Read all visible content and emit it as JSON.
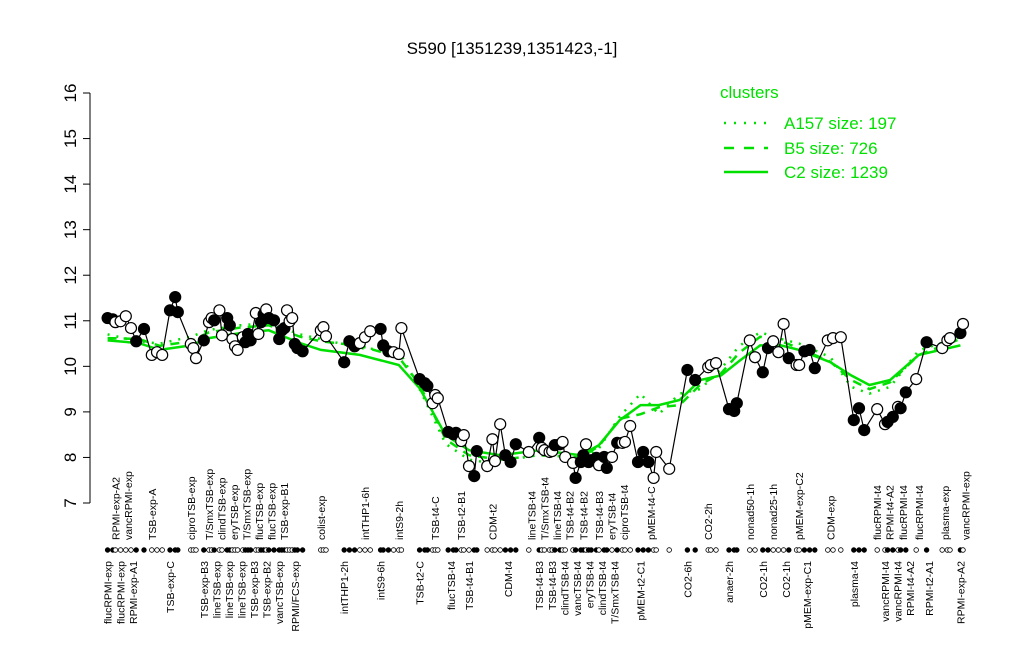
{
  "chart_data": {
    "type": "line",
    "title": "S590 [1351239,1351423,-1]",
    "xlabel": "",
    "ylabel": "",
    "ylim": [
      7,
      16
    ],
    "yticks": [
      7,
      8,
      9,
      10,
      11,
      12,
      13,
      14,
      15,
      16
    ],
    "xlim": [
      0,
      332
    ],
    "grid": false,
    "legend": {
      "title": "clusters",
      "placement": "top-right",
      "color": "#00e000",
      "entries": [
        {
          "label": "A157 size: 197",
          "style": "dotted"
        },
        {
          "label": "B5 size: 726",
          "style": "dashed"
        },
        {
          "label": "C2 size: 1239",
          "style": "solid"
        }
      ]
    },
    "points": [
      [
        1,
        11.06,
        1
      ],
      [
        3,
        11.03,
        1
      ],
      [
        4,
        10.97,
        0
      ],
      [
        6,
        10.99,
        0
      ],
      [
        8,
        11.1,
        0
      ],
      [
        10,
        10.84,
        0
      ],
      [
        12,
        10.55,
        1
      ],
      [
        15,
        10.82,
        1
      ],
      [
        18,
        10.25,
        0
      ],
      [
        20,
        10.31,
        0
      ],
      [
        22,
        10.25,
        0
      ],
      [
        25,
        11.23,
        1
      ],
      [
        27,
        11.52,
        1
      ],
      [
        28,
        11.19,
        1
      ],
      [
        33,
        10.49,
        0
      ],
      [
        34,
        10.4,
        0
      ],
      [
        35,
        10.18,
        0
      ],
      [
        38,
        10.57,
        1
      ],
      [
        40,
        10.97,
        0
      ],
      [
        41,
        11.06,
        0
      ],
      [
        42,
        11.01,
        1
      ],
      [
        44,
        11.23,
        0
      ],
      [
        45,
        10.68,
        0
      ],
      [
        47,
        11.06,
        1
      ],
      [
        48,
        10.9,
        1
      ],
      [
        49,
        10.6,
        0
      ],
      [
        50,
        10.44,
        0
      ],
      [
        51,
        10.36,
        0
      ],
      [
        53,
        10.64,
        0
      ],
      [
        54,
        10.53,
        1
      ],
      [
        55,
        10.71,
        1
      ],
      [
        56,
        10.57,
        1
      ],
      [
        58,
        11.17,
        0
      ],
      [
        59,
        10.71,
        0
      ],
      [
        60,
        10.97,
        1
      ],
      [
        61,
        11.14,
        1
      ],
      [
        62,
        11.25,
        0
      ],
      [
        63,
        11.06,
        1
      ],
      [
        65,
        11.01,
        1
      ],
      [
        67,
        10.6,
        1
      ],
      [
        68,
        10.79,
        1
      ],
      [
        69,
        10.84,
        1
      ],
      [
        70,
        11.23,
        0
      ],
      [
        71,
        10.99,
        0
      ],
      [
        72,
        11.06,
        0
      ],
      [
        73,
        10.49,
        1
      ],
      [
        74,
        10.4,
        1
      ],
      [
        76,
        10.33,
        1
      ],
      [
        83,
        10.79,
        0
      ],
      [
        84,
        10.86,
        0
      ],
      [
        85,
        10.66,
        0
      ],
      [
        92,
        10.09,
        1
      ],
      [
        94,
        10.55,
        1
      ],
      [
        96,
        10.44,
        1
      ],
      [
        98,
        10.51,
        0
      ],
      [
        100,
        10.64,
        0
      ],
      [
        102,
        10.77,
        0
      ],
      [
        106,
        10.82,
        1
      ],
      [
        107,
        10.46,
        1
      ],
      [
        109,
        10.33,
        1
      ],
      [
        111,
        10.31,
        0
      ],
      [
        113,
        10.27,
        0
      ],
      [
        114,
        10.84,
        0
      ],
      [
        121,
        9.72,
        1
      ],
      [
        123,
        9.63,
        1
      ],
      [
        124,
        9.57,
        1
      ],
      [
        126,
        9.19,
        0
      ],
      [
        127,
        9.37,
        0
      ],
      [
        128,
        9.3,
        0
      ],
      [
        132,
        8.56,
        1
      ],
      [
        134,
        8.51,
        1
      ],
      [
        135,
        8.54,
        1
      ],
      [
        137,
        8.36,
        0
      ],
      [
        138,
        8.49,
        0
      ],
      [
        140,
        7.81,
        0
      ],
      [
        142,
        7.59,
        1
      ],
      [
        143,
        8.14,
        1
      ],
      [
        147,
        7.81,
        0
      ],
      [
        149,
        8.4,
        0
      ],
      [
        150,
        7.92,
        0
      ],
      [
        152,
        8.73,
        0
      ],
      [
        154,
        8.05,
        1
      ],
      [
        156,
        7.9,
        1
      ],
      [
        158,
        8.29,
        1
      ],
      [
        163,
        8.12,
        0
      ],
      [
        167,
        8.43,
        1
      ],
      [
        168,
        8.21,
        0
      ],
      [
        169,
        8.16,
        0
      ],
      [
        171,
        8.12,
        0
      ],
      [
        172,
        8.14,
        0
      ],
      [
        173,
        8.27,
        1
      ],
      [
        175,
        8.29,
        1
      ],
      [
        176,
        8.34,
        0
      ],
      [
        177,
        8.01,
        0
      ],
      [
        180,
        7.88,
        0
      ],
      [
        181,
        7.55,
        1
      ],
      [
        183,
        7.9,
        1
      ],
      [
        184,
        8.05,
        1
      ],
      [
        185,
        8.29,
        0
      ],
      [
        186,
        7.9,
        1
      ],
      [
        187,
        7.94,
        1
      ],
      [
        189,
        7.99,
        1
      ],
      [
        190,
        7.83,
        0
      ],
      [
        192,
        8.01,
        1
      ],
      [
        193,
        7.77,
        1
      ],
      [
        195,
        8.01,
        0
      ],
      [
        197,
        8.32,
        1
      ],
      [
        199,
        8.32,
        0
      ],
      [
        200,
        8.34,
        0
      ],
      [
        202,
        8.69,
        0
      ],
      [
        205,
        7.9,
        1
      ],
      [
        207,
        8.12,
        1
      ],
      [
        209,
        7.9,
        1
      ],
      [
        211,
        7.55,
        0
      ],
      [
        212,
        8.12,
        0
      ],
      [
        217,
        7.75,
        0
      ],
      [
        224,
        9.92,
        1
      ],
      [
        227,
        9.7,
        1
      ],
      [
        232,
        9.98,
        0
      ],
      [
        233,
        10.03,
        0
      ],
      [
        235,
        10.07,
        0
      ],
      [
        240,
        9.06,
        1
      ],
      [
        242,
        9.02,
        1
      ],
      [
        243,
        9.19,
        1
      ],
      [
        248,
        10.57,
        0
      ],
      [
        250,
        10.2,
        0
      ],
      [
        253,
        9.87,
        1
      ],
      [
        255,
        10.4,
        1
      ],
      [
        257,
        10.55,
        0
      ],
      [
        259,
        10.31,
        0
      ],
      [
        261,
        10.93,
        0
      ],
      [
        263,
        10.18,
        1
      ],
      [
        266,
        10.03,
        0
      ],
      [
        267,
        10.03,
        0
      ],
      [
        269,
        10.33,
        1
      ],
      [
        271,
        10.36,
        1
      ],
      [
        273,
        9.96,
        1
      ],
      [
        278,
        10.57,
        0
      ],
      [
        280,
        10.62,
        0
      ],
      [
        283,
        10.64,
        0
      ],
      [
        288,
        8.82,
        1
      ],
      [
        290,
        9.08,
        1
      ],
      [
        292,
        8.6,
        1
      ],
      [
        297,
        9.06,
        0
      ],
      [
        300,
        8.73,
        0
      ],
      [
        301,
        8.78,
        1
      ],
      [
        303,
        8.89,
        1
      ],
      [
        305,
        9.11,
        0
      ],
      [
        306,
        9.08,
        1
      ],
      [
        308,
        9.43,
        1
      ],
      [
        312,
        9.72,
        0
      ],
      [
        316,
        10.53,
        1
      ],
      [
        322,
        10.4,
        0
      ],
      [
        324,
        10.57,
        0
      ],
      [
        325,
        10.62,
        0
      ],
      [
        329,
        10.73,
        1
      ],
      [
        330,
        10.93,
        0
      ]
    ],
    "cluster_lines": {
      "x": [
        1,
        13,
        21,
        33,
        40,
        52,
        63,
        75,
        83,
        98,
        113,
        121,
        131,
        140,
        152,
        167,
        183,
        190,
        198,
        206,
        213,
        221,
        229,
        237,
        244,
        252,
        260,
        267,
        279,
        287,
        294,
        302,
        313,
        329
      ],
      "C2": [
        10.57,
        10.51,
        10.36,
        10.46,
        10.62,
        10.73,
        10.79,
        10.51,
        10.36,
        10.25,
        10.03,
        9.52,
        8.49,
        8.16,
        8.05,
        8.16,
        8.05,
        8.27,
        8.82,
        9.15,
        9.15,
        9.26,
        9.7,
        9.8,
        10.12,
        10.46,
        10.46,
        10.36,
        10.09,
        9.8,
        9.59,
        9.7,
        10.25,
        10.46
      ],
      "B5": [
        10.62,
        10.6,
        10.45,
        10.55,
        10.75,
        10.85,
        10.9,
        10.65,
        10.55,
        10.45,
        10.2,
        9.6,
        8.4,
        8.05,
        7.95,
        8.05,
        8.0,
        8.25,
        8.85,
        8.95,
        9.1,
        9.15,
        9.6,
        9.85,
        10.3,
        10.65,
        10.55,
        10.4,
        10.1,
        9.7,
        9.5,
        9.65,
        10.25,
        10.6
      ],
      "A157": [
        10.7,
        10.55,
        10.5,
        10.65,
        10.8,
        10.9,
        10.95,
        10.7,
        10.6,
        10.4,
        10.35,
        9.5,
        8.3,
        7.95,
        7.85,
        8.1,
        7.95,
        8.2,
        8.9,
        9.4,
        8.95,
        9.4,
        9.5,
        9.95,
        10.45,
        10.75,
        10.6,
        10.5,
        10.2,
        9.55,
        9.4,
        9.55,
        10.35,
        10.65
      ]
    },
    "top_labels": [
      [
        4,
        "RPMI-exp-A2"
      ],
      [
        8,
        "vancRPMI-exp"
      ],
      [
        18,
        "TSB-exp-A"
      ],
      [
        33,
        "ciproTSB-exp"
      ],
      [
        40,
        "T/SmxTSB-exp"
      ],
      [
        43,
        "clindTSB-exp"
      ],
      [
        49,
        "eryTSB-exp"
      ],
      [
        53,
        "T/SmxTSB-exp"
      ],
      [
        58,
        "flucTSB-exp"
      ],
      [
        62,
        "flucTSB-exp"
      ],
      [
        68,
        "TSB-exp-B1"
      ],
      [
        83,
        "colist-exp"
      ],
      [
        100,
        "intTHP1-6h"
      ],
      [
        113,
        "intS9-2h"
      ],
      [
        127,
        "TSB-t4-C"
      ],
      [
        137,
        "TSB-t2-B1"
      ],
      [
        149,
        "CDM-t2"
      ],
      [
        164,
        "lineTSB-t4"
      ],
      [
        169,
        "T/SmxTSB-t4"
      ],
      [
        173,
        "lineTSB-t4"
      ],
      [
        177,
        "TSB-t4-B2"
      ],
      [
        184,
        "TSB-t4-B2"
      ],
      [
        190,
        "TSB-t4-B3"
      ],
      [
        194,
        "eryTSB-t4"
      ],
      [
        199,
        "ciproTSB-t4"
      ],
      [
        210,
        "pMEM-t4-C"
      ],
      [
        232,
        "CO2-2h"
      ],
      [
        248,
        "nonad50-1h"
      ],
      [
        257,
        "nonad25-1h"
      ],
      [
        267,
        "pMEM-exp-C2"
      ],
      [
        279,
        "CDM-exp"
      ],
      [
        297,
        "flucRPMI-t4"
      ],
      [
        300,
        "RPMI-t4-A2"
      ],
      [
        307,
        "flucRPMI-t4"
      ],
      [
        313,
        "flucRPMI-t4"
      ],
      [
        323,
        "plasma-exp"
      ],
      [
        331,
        "vancRPMI-exp"
      ]
    ],
    "bottom_labels": [
      [
        1,
        "flucRPMI-exp"
      ],
      [
        6,
        "flucRPMI-exp"
      ],
      [
        10,
        "RPMI-exp-A1"
      ],
      [
        25,
        "TSB-exp-C"
      ],
      [
        38,
        "TSB-exp-B3"
      ],
      [
        42,
        "lineTSB-exp"
      ],
      [
        47,
        "lineTSB-exp"
      ],
      [
        52,
        "lineTSB-exp"
      ],
      [
        53,
        "TSB-exp-B3"
      ],
      [
        57,
        "TSB-exp-B2"
      ],
      [
        63,
        "vancTSB-exp"
      ],
      [
        73,
        "RPMI/FCS-exp"
      ],
      [
        92,
        "intTHP1-2h"
      ],
      [
        106,
        "intS9-6h"
      ],
      [
        121,
        "TSB-t2-C"
      ],
      [
        133,
        "flucTSB-t4"
      ],
      [
        140,
        "TSB-t4-B1"
      ],
      [
        155,
        "CDM-t4"
      ],
      [
        167,
        "TSB-t4-B3"
      ],
      [
        172,
        "TSB-t4-B3"
      ],
      [
        176,
        "clindTSB-t4"
      ],
      [
        181,
        "vancTSB-t4"
      ],
      [
        186,
        "eryTSB-t4"
      ],
      [
        191,
        "clindTSB-t4"
      ],
      [
        196,
        "T/SmxTSB-t4"
      ],
      [
        206,
        "pMEM-t2-C1"
      ],
      [
        224,
        "CO2-6h"
      ],
      [
        240,
        "anaer-2h"
      ],
      [
        253,
        "CO2-1h"
      ],
      [
        262,
        "CO2-1h"
      ],
      [
        270,
        "pMEM-exp-C1"
      ],
      [
        288,
        "plasma-t4"
      ],
      [
        300,
        "vancRPMI-t4"
      ],
      [
        303,
        "vancRPMI-t4"
      ],
      [
        308,
        "RPMI-t4-A2"
      ],
      [
        317,
        "RPMI-t2-A1"
      ],
      [
        329,
        "RPMI-exp-A2"
      ]
    ],
    "colors": {
      "cluster_lines": "#00e000",
      "points": "#000000"
    }
  }
}
